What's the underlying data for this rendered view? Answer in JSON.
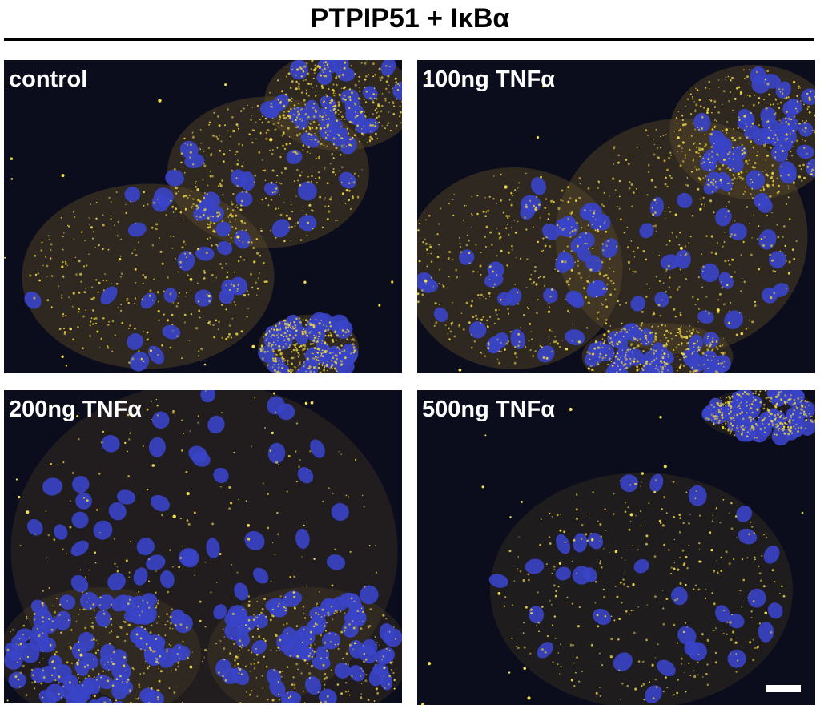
{
  "header": {
    "title": "PTPIP51 + IκBα"
  },
  "panels": [
    {
      "label": "control"
    },
    {
      "label": "100ng TNFα"
    },
    {
      "label": "200ng TNFα"
    },
    {
      "label": "500ng TNFα"
    }
  ]
}
